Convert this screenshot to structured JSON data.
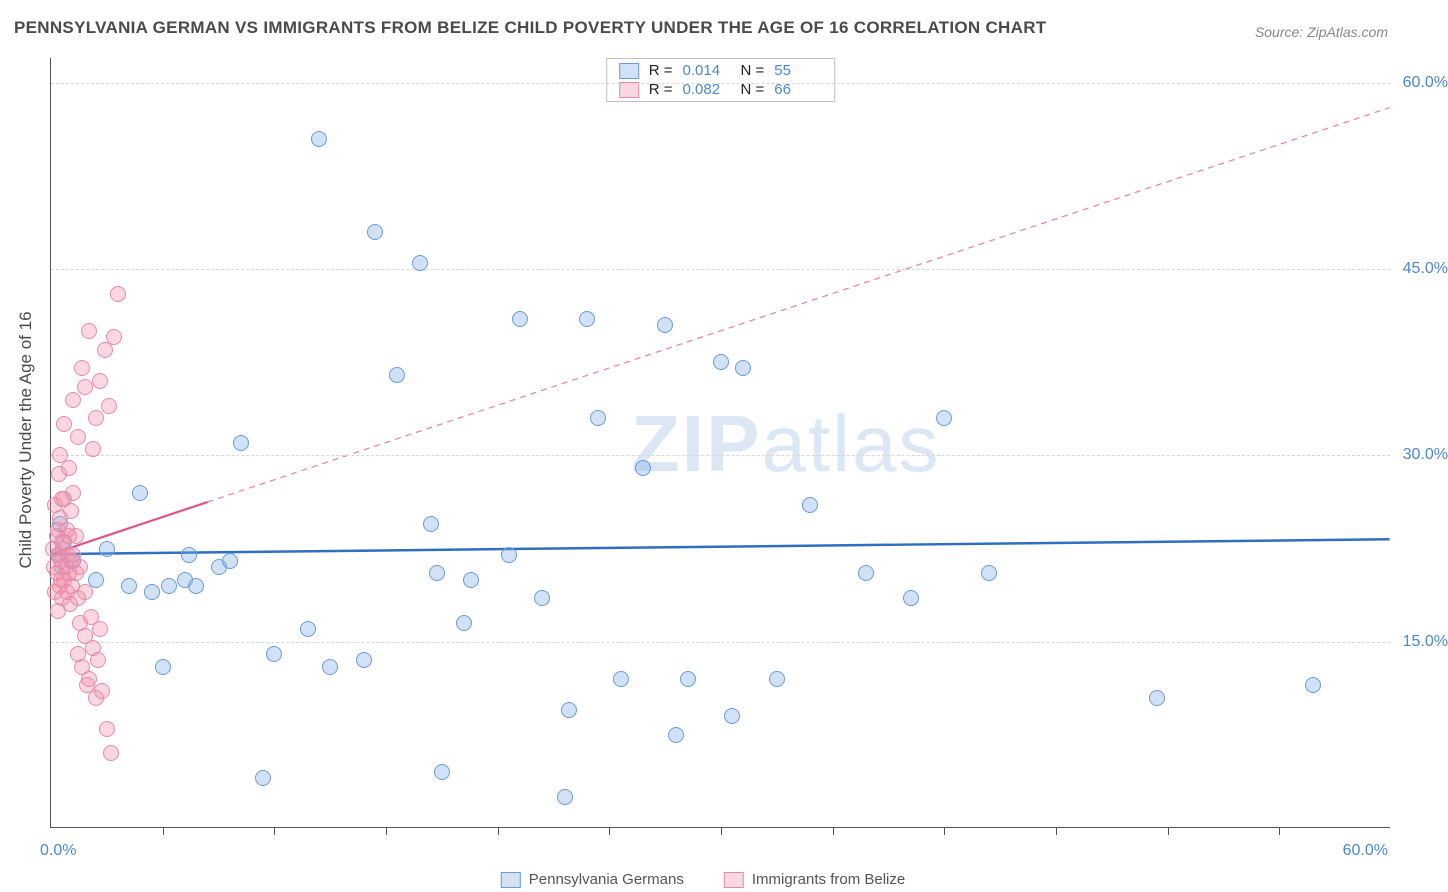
{
  "title": "PENNSYLVANIA GERMAN VS IMMIGRANTS FROM BELIZE CHILD POVERTY UNDER THE AGE OF 16 CORRELATION CHART",
  "source": "Source: ZipAtlas.com",
  "watermark_bold": "ZIP",
  "watermark_light": "atlas",
  "y_axis_title": "Child Poverty Under the Age of 16",
  "chart": {
    "type": "scatter",
    "background_color": "#ffffff",
    "grid_color": "#d6d6d6",
    "xlim": [
      0,
      60
    ],
    "ylim": [
      0,
      62
    ],
    "x_axis": {
      "min_label": "0.0%",
      "max_label": "60.0%",
      "tick_positions": [
        5,
        10,
        15,
        20,
        25,
        30,
        35,
        40,
        45,
        50,
        55
      ]
    },
    "y_axis": {
      "ticks": [
        {
          "value": 15,
          "label": "15.0%"
        },
        {
          "value": 30,
          "label": "30.0%"
        },
        {
          "value": 45,
          "label": "45.0%"
        },
        {
          "value": 60,
          "label": "60.0%"
        }
      ]
    },
    "marker_radius": 8,
    "series": [
      {
        "name": "Pennsylvania Germans",
        "fill_color": "rgba(122, 171, 230, 0.35)",
        "stroke_color": "#6a9bd8",
        "trend": {
          "y_start": 22.0,
          "y_end": 23.2,
          "x_end_solid": 60,
          "line_color": "#2f6fc2",
          "line_width": 2.5
        },
        "points": [
          [
            0.3,
            22.0
          ],
          [
            0.4,
            24.5
          ],
          [
            0.5,
            21.0
          ],
          [
            0.6,
            23.0
          ],
          [
            1.0,
            21.5
          ],
          [
            2.0,
            20.0
          ],
          [
            2.5,
            22.5
          ],
          [
            3.5,
            19.5
          ],
          [
            4.0,
            27.0
          ],
          [
            4.5,
            19.0
          ],
          [
            5.0,
            13.0
          ],
          [
            5.3,
            19.5
          ],
          [
            6.0,
            20.0
          ],
          [
            6.5,
            19.5
          ],
          [
            7.5,
            21.0
          ],
          [
            8.0,
            21.5
          ],
          [
            8.5,
            31.0
          ],
          [
            9.5,
            4.0
          ],
          [
            10.0,
            14.0
          ],
          [
            11.5,
            16.0
          ],
          [
            12.0,
            55.5
          ],
          [
            12.5,
            13.0
          ],
          [
            14.0,
            13.5
          ],
          [
            14.5,
            48.0
          ],
          [
            15.5,
            36.5
          ],
          [
            16.5,
            45.5
          ],
          [
            17.0,
            24.5
          ],
          [
            17.3,
            20.5
          ],
          [
            17.5,
            4.5
          ],
          [
            18.5,
            16.5
          ],
          [
            18.8,
            20.0
          ],
          [
            20.5,
            22.0
          ],
          [
            21.0,
            41.0
          ],
          [
            22.0,
            18.5
          ],
          [
            23.0,
            2.5
          ],
          [
            23.2,
            9.5
          ],
          [
            24.0,
            41.0
          ],
          [
            24.5,
            33.0
          ],
          [
            25.5,
            12.0
          ],
          [
            26.5,
            29.0
          ],
          [
            27.5,
            40.5
          ],
          [
            28.0,
            7.5
          ],
          [
            28.5,
            12.0
          ],
          [
            30.5,
            9.0
          ],
          [
            31.0,
            37.0
          ],
          [
            32.5,
            12.0
          ],
          [
            34.0,
            26.0
          ],
          [
            36.5,
            20.5
          ],
          [
            38.5,
            18.5
          ],
          [
            40.0,
            33.0
          ],
          [
            42.0,
            20.5
          ],
          [
            49.5,
            10.5
          ],
          [
            56.5,
            11.5
          ],
          [
            30.0,
            37.5
          ],
          [
            6.2,
            22.0
          ]
        ]
      },
      {
        "name": "Immigrants from Belize",
        "fill_color": "rgba(240, 140, 170, 0.35)",
        "stroke_color": "#e88aa8",
        "trend": {
          "y_start": 22.0,
          "y_end": 58.0,
          "x_end_solid": 7,
          "line_color": "#e15288",
          "line_width": 2.2
        },
        "points": [
          [
            0.1,
            22.5
          ],
          [
            0.15,
            21.0
          ],
          [
            0.2,
            26.0
          ],
          [
            0.2,
            19.0
          ],
          [
            0.25,
            23.5
          ],
          [
            0.25,
            20.5
          ],
          [
            0.3,
            24.0
          ],
          [
            0.3,
            17.5
          ],
          [
            0.35,
            28.5
          ],
          [
            0.35,
            22.0
          ],
          [
            0.4,
            19.5
          ],
          [
            0.4,
            25.0
          ],
          [
            0.45,
            20.0
          ],
          [
            0.45,
            21.5
          ],
          [
            0.5,
            18.5
          ],
          [
            0.5,
            23.0
          ],
          [
            0.55,
            22.5
          ],
          [
            0.6,
            20.0
          ],
          [
            0.6,
            26.5
          ],
          [
            0.65,
            21.0
          ],
          [
            0.7,
            24.0
          ],
          [
            0.7,
            19.0
          ],
          [
            0.75,
            22.0
          ],
          [
            0.8,
            20.5
          ],
          [
            0.8,
            23.5
          ],
          [
            0.85,
            18.0
          ],
          [
            0.9,
            25.5
          ],
          [
            0.9,
            21.5
          ],
          [
            0.95,
            19.5
          ],
          [
            1.0,
            27.0
          ],
          [
            1.0,
            22.0
          ],
          [
            1.1,
            20.5
          ],
          [
            1.1,
            23.5
          ],
          [
            1.2,
            14.0
          ],
          [
            1.2,
            18.5
          ],
          [
            1.3,
            16.5
          ],
          [
            1.3,
            21.0
          ],
          [
            1.4,
            13.0
          ],
          [
            1.5,
            15.5
          ],
          [
            1.5,
            19.0
          ],
          [
            1.6,
            11.5
          ],
          [
            1.7,
            12.0
          ],
          [
            1.8,
            17.0
          ],
          [
            1.9,
            14.5
          ],
          [
            2.0,
            10.5
          ],
          [
            2.1,
            13.5
          ],
          [
            2.2,
            16.0
          ],
          [
            2.3,
            11.0
          ],
          [
            2.5,
            8.0
          ],
          [
            2.7,
            6.0
          ],
          [
            0.4,
            30.0
          ],
          [
            0.6,
            32.5
          ],
          [
            0.8,
            29.0
          ],
          [
            1.0,
            34.5
          ],
          [
            1.2,
            31.5
          ],
          [
            1.4,
            37.0
          ],
          [
            1.5,
            35.5
          ],
          [
            1.7,
            40.0
          ],
          [
            1.9,
            30.5
          ],
          [
            2.0,
            33.0
          ],
          [
            2.2,
            36.0
          ],
          [
            2.4,
            38.5
          ],
          [
            2.6,
            34.0
          ],
          [
            2.8,
            39.5
          ],
          [
            3.0,
            43.0
          ],
          [
            0.5,
            26.5
          ]
        ]
      }
    ],
    "legend_top": [
      {
        "swatch_fill": "rgba(122,171,230,0.35)",
        "swatch_stroke": "#6a9bd8",
        "r_label": "R =",
        "r_value": "0.014",
        "n_label": "N =",
        "n_value": "55"
      },
      {
        "swatch_fill": "rgba(240,140,170,0.35)",
        "swatch_stroke": "#e88aa8",
        "r_label": "R =",
        "r_value": "0.082",
        "n_label": "N =",
        "n_value": "66"
      }
    ],
    "legend_bottom": [
      {
        "swatch_fill": "rgba(122,171,230,0.35)",
        "swatch_stroke": "#6a9bd8",
        "label": "Pennsylvania Germans"
      },
      {
        "swatch_fill": "rgba(240,140,170,0.35)",
        "swatch_stroke": "#e88aa8",
        "label": "Immigrants from Belize"
      }
    ]
  }
}
